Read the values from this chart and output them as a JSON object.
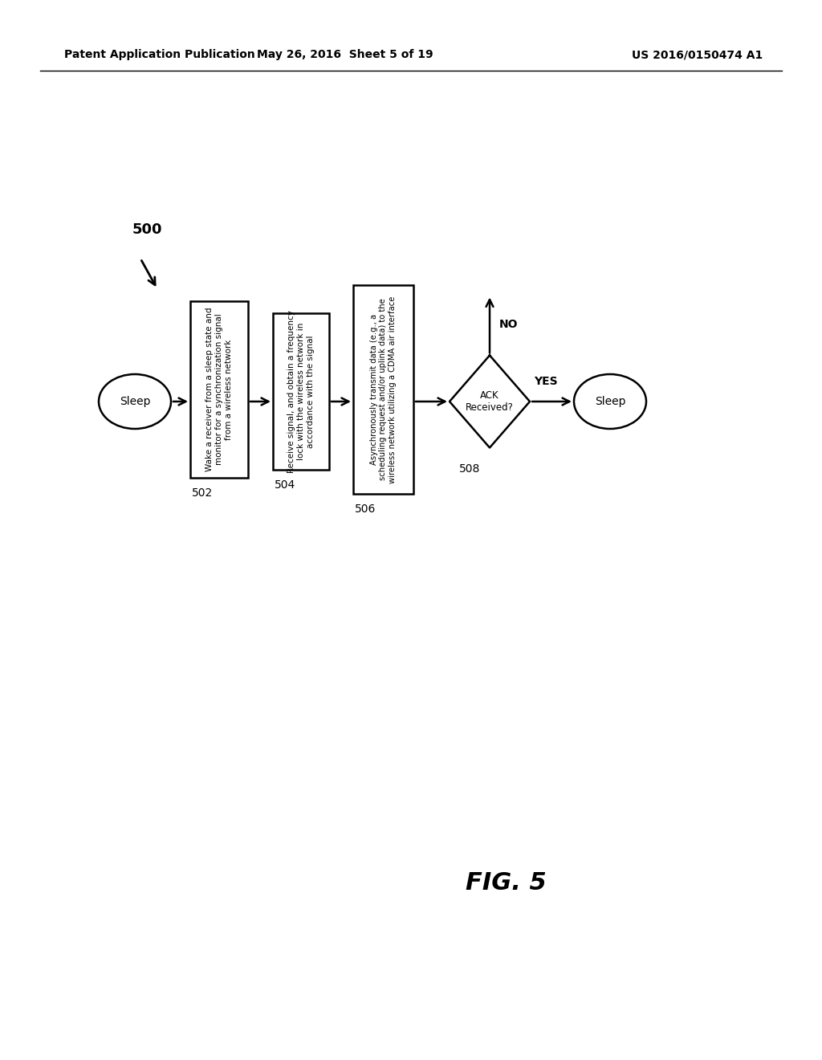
{
  "header_left": "Patent Application Publication",
  "header_mid": "May 26, 2016  Sheet 5 of 19",
  "header_right": "US 2016/0150474 A1",
  "fig_label": "FIG. 5",
  "bg_color": "#ffffff",
  "diagram_label": "500",
  "sleep1_label": "Sleep",
  "sleep2_label": "Sleep",
  "box502_label": "Wake a receiver from a sleep state and\nmonitor for a synchronization signal\nfrom a wireless network",
  "box502_num": "502",
  "box504_label": "Receive signal, and obtain a frequency\nlock with the wireless network in\naccordance with the signal",
  "box504_num": "504",
  "box506_label": "Asynchronously transmit data (e.g., a\nscheduling request and/or uplink data) to the\nwireless network utilizing a CDMA air interface",
  "box506_num": "506",
  "diamond_label": "ACK\nReceived?",
  "diamond_num": "508",
  "no_label": "NO",
  "yes_label": "YES"
}
